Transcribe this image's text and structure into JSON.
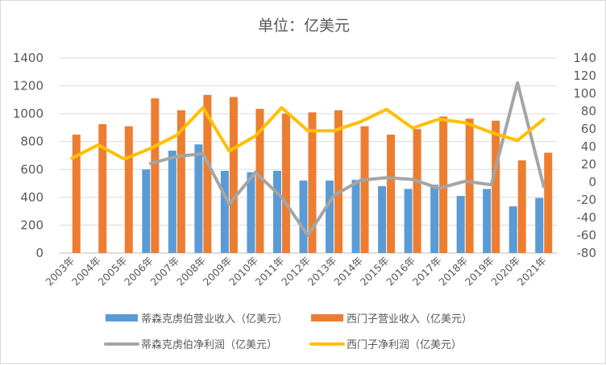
{
  "chart_data": {
    "type": "bar",
    "title": "单位：亿美元",
    "categories": [
      "2003年",
      "2004年",
      "2005年",
      "2006年",
      "2007年",
      "2008年",
      "2009年",
      "2010年",
      "2011年",
      "2012年",
      "2013年",
      "2014年",
      "2015年",
      "2016年",
      "2017年",
      "2018年",
      "2019年",
      "2020年",
      "2021年"
    ],
    "ylim": [
      0,
      1400
    ],
    "yticks": [
      0,
      200,
      400,
      600,
      800,
      1000,
      1200,
      1400
    ],
    "y2lim": [
      -80,
      140
    ],
    "y2ticks": [
      -80,
      -60,
      -40,
      -20,
      0,
      20,
      40,
      60,
      80,
      100,
      120,
      140
    ],
    "grid": true,
    "legend_position": "bottom",
    "series": [
      {
        "name": "蒂森克虏伯营业收入（亿美元）",
        "type": "bar",
        "axis": "left",
        "color": "#5b9bd5",
        "values": [
          null,
          null,
          null,
          600,
          735,
          780,
          590,
          580,
          590,
          520,
          520,
          525,
          480,
          460,
          490,
          410,
          460,
          335,
          395
        ]
      },
      {
        "name": "西门子营业收入（亿美元）",
        "type": "bar",
        "axis": "left",
        "color": "#ed7d31",
        "values": [
          850,
          925,
          910,
          1110,
          1025,
          1135,
          1120,
          1035,
          1000,
          1010,
          1025,
          910,
          850,
          890,
          980,
          965,
          950,
          665,
          720
        ]
      },
      {
        "name": "蒂森克虏伯净利润（亿美元）",
        "type": "line",
        "axis": "right",
        "color": "#a5a5a5",
        "values": [
          null,
          null,
          null,
          21,
          29,
          32,
          -25,
          11,
          -17,
          -60,
          -15,
          2,
          5,
          3,
          -7,
          1,
          -3,
          112,
          -5
        ]
      },
      {
        "name": "西门子净利润（亿美元）",
        "type": "line",
        "axis": "right",
        "color": "#ffc000",
        "values": [
          27,
          42,
          26,
          38,
          53,
          84,
          35,
          52,
          84,
          58,
          58,
          68,
          82,
          61,
          71,
          67,
          56,
          47,
          71
        ]
      }
    ]
  }
}
